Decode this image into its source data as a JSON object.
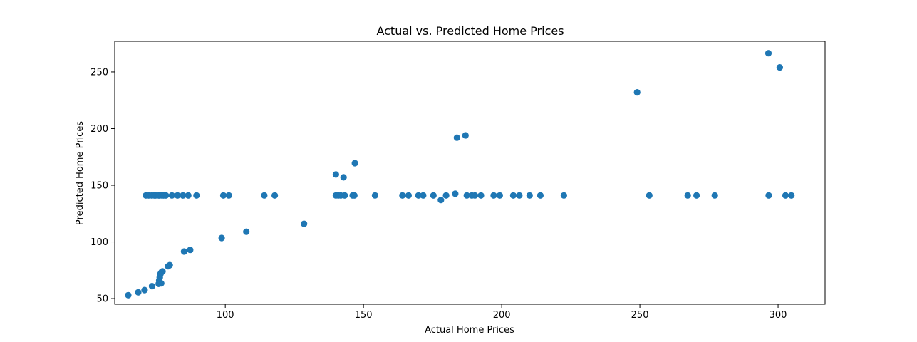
{
  "chart_data": {
    "type": "scatter",
    "title": "Actual vs. Predicted Home Prices",
    "xlabel": "Actual Home Prices",
    "ylabel": "Predicted Home Prices",
    "xlim": [
      60,
      317
    ],
    "ylim": [
      45,
      277
    ],
    "xticks": [
      100,
      150,
      200,
      250,
      300
    ],
    "yticks": [
      50,
      100,
      150,
      200,
      250
    ],
    "grid": false,
    "color": "#1f77b4",
    "x": [
      64.9,
      68.5,
      70.8,
      71.3,
      72.3,
      73.4,
      74.3,
      74.8,
      75.9,
      76.3,
      77.1,
      77.7,
      78.5,
      80.7,
      82.7,
      84.7,
      86.6,
      89.6,
      99.3,
      101.3,
      114.1,
      117.9,
      140.0,
      140.9,
      141.8,
      143.2,
      146.1,
      146.7,
      154.2,
      164.1,
      166.3,
      169.9,
      171.6,
      175.3,
      179.9,
      187.4,
      189.2,
      190.3,
      192.5,
      197.1,
      199.3,
      204.2,
      206.4,
      210.1,
      214.0,
      222.5,
      253.4,
      267.3,
      270.5,
      277.1,
      296.6,
      302.7,
      304.8,
      73.5,
      75.9,
      76.1,
      76.3,
      76.4,
      76.6,
      76.8,
      77.0,
      77.3,
      79.3,
      79.9,
      85.1,
      87.3,
      98.7,
      107.6,
      128.5,
      140.0,
      142.8,
      146.9,
      178.0,
      183.2,
      183.8,
      186.9,
      249.0,
      296.5,
      300.6
    ],
    "y": [
      53,
      55.5,
      57.5,
      141,
      141,
      141,
      141,
      141,
      141,
      141,
      141,
      141,
      141,
      141,
      141,
      141,
      141,
      141,
      141,
      141,
      141,
      141,
      141,
      141,
      141,
      141,
      141,
      141,
      141,
      141,
      141,
      141,
      141,
      141,
      141,
      141,
      141,
      141,
      141,
      141,
      141,
      141,
      141,
      141,
      141,
      141,
      141,
      141,
      141,
      141,
      141,
      141,
      141,
      61,
      63,
      66,
      68.5,
      70.5,
      72,
      63.5,
      73.5,
      74,
      78.5,
      79.5,
      91.5,
      93,
      103.5,
      109,
      116,
      159.5,
      157,
      169.5,
      137,
      142.5,
      192,
      194,
      232,
      266.5,
      254
    ]
  }
}
